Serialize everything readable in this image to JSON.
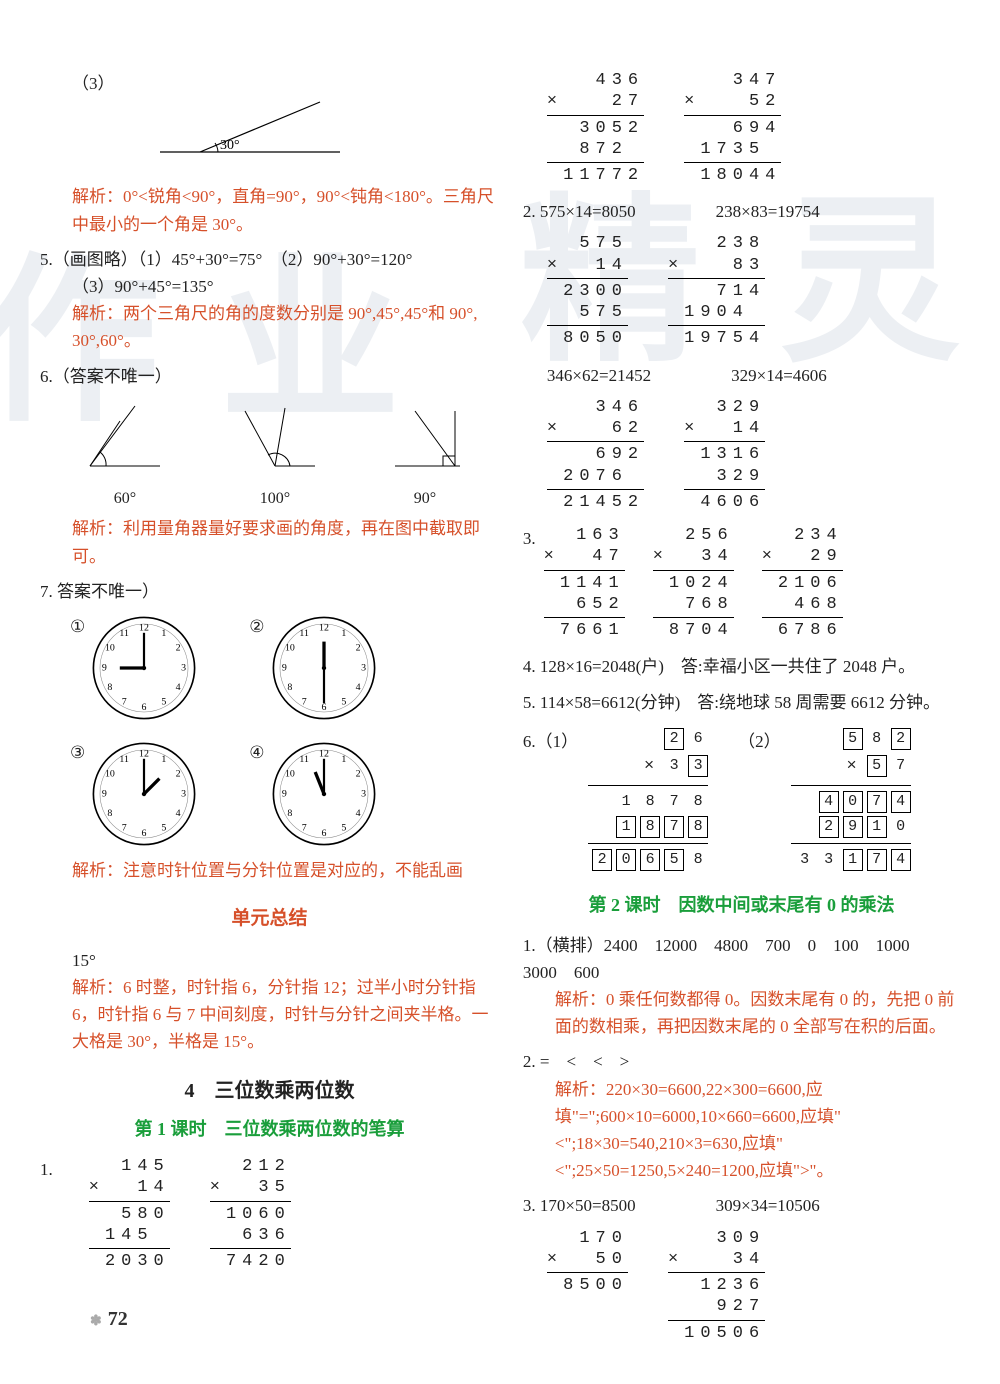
{
  "colors": {
    "text": "#222222",
    "red": "#d6502a",
    "green": "#1a9e3b",
    "rule": "#000000",
    "bg": "#ffffff",
    "watermark": "rgba(200,210,220,0.35)"
  },
  "left": {
    "q3_label": "（3）",
    "q3_angle_label": "30°",
    "q3_expl": "解析：0°<锐角<90°，直角=90°，90°<钝角<180°。三角尺中最小的一个角是 30°。",
    "q5_line1": "5.（画图略）（1）45°+30°=75°　（2）90°+30°=120°",
    "q5_line2": "（3）90°+45°=135°",
    "q5_expl": "解析：两个三角尺的角的度数分别是 90°,45°,45°和 90°, 30°,60°。",
    "q6_head": "6.（答案不唯一）",
    "q6_angles": [
      "60°",
      "100°",
      "90°"
    ],
    "q6_expl": "解析：利用量角器量好要求画的角度，再在图中截取即可。",
    "q7_head": "7. 答案不唯一）",
    "clock_labels": [
      "①",
      "②",
      "③",
      "④"
    ],
    "q7_expl": "解析：注意时针位置与分针位置是对应的，不能乱画",
    "unit_title": "单元总结",
    "unit_ans": "15°",
    "unit_expl": "解析：6 时整，时针指 6，分针指 12；过半小时分针指 6，时针指 6 与 7 中间刻度，时针与分针之间夹半格。一大格是 30°，半格是 15°。",
    "ch4_title": "4　三位数乘两位数",
    "l1_title": "第 1 课时　三位数乘两位数的笔算",
    "p1_label": "1.",
    "p1_mults": [
      {
        "lines": [
          "  145",
          "×  14",
          "RULE",
          "  580",
          " 145 ",
          "RULE",
          " 2030"
        ]
      },
      {
        "lines": [
          "  212",
          "×  35",
          "RULE",
          " 1060",
          "  636",
          "RULE",
          " 7420"
        ]
      }
    ]
  },
  "right": {
    "top_mults": [
      {
        "lines": [
          "   436",
          "×   27",
          "RULE",
          "  3052",
          "  872 ",
          "RULE",
          " 11772"
        ]
      },
      {
        "lines": [
          "   347",
          "×   52",
          "RULE",
          "   694",
          " 1735 ",
          "RULE",
          " 18044"
        ]
      }
    ],
    "q2_head": "2. 575×14=8050",
    "q2_head_b": "238×83=19754",
    "q2_mults": [
      {
        "lines": [
          "  575",
          "×  14",
          "RULE",
          " 2300",
          "  575",
          "RULE",
          " 8050"
        ]
      },
      {
        "lines": [
          "   238",
          "×   83",
          "RULE",
          "   714",
          " 1904 ",
          "RULE",
          " 19754"
        ]
      }
    ],
    "q2b_head": "346×62=21452",
    "q2b_head_b": "329×14=4606",
    "q2b_mults": [
      {
        "lines": [
          "   346",
          "×   62",
          "RULE",
          "   692",
          " 2076 ",
          "RULE",
          " 21452"
        ]
      },
      {
        "lines": [
          "  329",
          "×  14",
          "RULE",
          " 1316",
          "  329",
          "RULE",
          " 4606"
        ]
      }
    ],
    "q3_label": "3.",
    "q3_mults": [
      {
        "lines": [
          "  163",
          "×  47",
          "RULE",
          " 1141",
          "  652",
          "RULE",
          " 7661"
        ]
      },
      {
        "lines": [
          "  256",
          "×  34",
          "RULE",
          " 1024",
          "  768",
          "RULE",
          " 8704"
        ]
      },
      {
        "lines": [
          "  234",
          "×  29",
          "RULE",
          " 2106",
          "  468",
          "RULE",
          " 6786"
        ]
      }
    ],
    "q4": "4. 128×16=2048(户)　答:幸福小区一共住了 2048 户。",
    "q5": "5. 114×58=6612(分钟)　答:绕地球 58 周需要 6612 分钟。",
    "q6_label": "6.（1）",
    "q6_label2": "（2）",
    "puzzle1": {
      "r1": [
        [
          "",
          "6",
          "p"
        ],
        [
          "2",
          "b"
        ],
        [
          "6",
          "p"
        ]
      ],
      "r2_prefix": "×",
      "r2": [
        [
          "3",
          "p"
        ],
        [
          "3",
          "b"
        ]
      ],
      "r3": [
        [
          "1",
          "p"
        ],
        [
          "8",
          "p"
        ],
        [
          "7",
          "p"
        ],
        [
          "8",
          "p"
        ]
      ],
      "r4": [
        [
          "1",
          "b"
        ],
        [
          "8",
          "b"
        ],
        [
          "7",
          "b"
        ],
        [
          "8",
          "b"
        ]
      ],
      "r5": [
        [
          "2",
          "b"
        ],
        [
          "0",
          "b"
        ],
        [
          "6",
          "b"
        ],
        [
          "5",
          "b"
        ],
        [
          "8",
          "p"
        ]
      ]
    },
    "puzzle2": {
      "r1": [
        [
          "5",
          "b"
        ],
        [
          "8",
          "p"
        ],
        [
          "2",
          "b"
        ]
      ],
      "r2_prefix": "×",
      "r2": [
        [
          "5",
          "b"
        ],
        [
          "7",
          "p"
        ]
      ],
      "r3": [
        [
          "4",
          "b"
        ],
        [
          "0",
          "b"
        ],
        [
          "7",
          "b"
        ],
        [
          "4",
          "b"
        ]
      ],
      "r4": [
        [
          "2",
          "b"
        ],
        [
          "9",
          "b"
        ],
        [
          "1",
          "b"
        ],
        [
          "0",
          "p"
        ]
      ],
      "r5": [
        [
          "3",
          "p"
        ],
        [
          "3",
          "p"
        ],
        [
          "1",
          "b"
        ],
        [
          "7",
          "b"
        ],
        [
          "4",
          "b"
        ]
      ]
    },
    "l2_title": "第 2 课时　因数中间或末尾有 0 的乘法",
    "l2_q1": "1.（横排）2400　12000　4800　700　0　100　1000　3000　600",
    "l2_q1_expl": "解析：0 乘任何数都得 0。因数末尾有 0 的，先把 0 前面的数相乘，再把因数末尾的 0 全部写在积的后面。",
    "l2_q2": "2. =　<　<　>",
    "l2_q2_expl": "解析：220×30=6600,22×300=6600,应填\"=\";600×10=6000,10×660=6600,应填\"<\";18×30=540,210×3=630,应填\"<\";25×50=1250,5×240=1200,应填\">\"。",
    "l2_q3_head": "3. 170×50=8500",
    "l2_q3_head_b": "309×34=10506",
    "l2_q3_mults": [
      {
        "lines": [
          "  170",
          "×  50",
          "RULE",
          " 8500"
        ]
      },
      {
        "lines": [
          "   309",
          "×   34",
          "RULE",
          "  1236",
          "   927",
          "RULE",
          " 10506"
        ]
      }
    ]
  },
  "pagenum": "72",
  "watermark": [
    "作",
    "业",
    "精",
    "灵"
  ]
}
